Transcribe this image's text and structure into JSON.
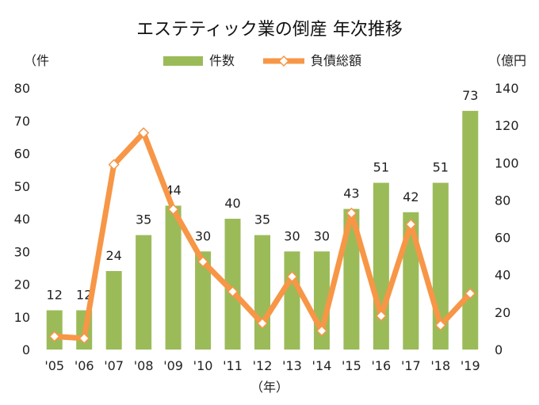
{
  "chart_data": {
    "type": "bar+line",
    "title": "エステティック業の倒産 年次推移",
    "left_axis_unit": "（件",
    "right_axis_unit": "（億円",
    "x_axis_unit": "（年）",
    "categories": [
      "'05",
      "'06",
      "'07",
      "'08",
      "'09",
      "'10",
      "'11",
      "'12",
      "'13",
      "'14",
      "'15",
      "'16",
      "'17",
      "'18",
      "'19"
    ],
    "y_left": {
      "min": 0,
      "max": 80,
      "ticks": [
        0,
        10,
        20,
        30,
        40,
        50,
        60,
        70,
        80
      ]
    },
    "y_right": {
      "min": 0,
      "max": 140,
      "ticks": [
        0,
        20,
        40,
        60,
        80,
        100,
        120,
        140
      ]
    },
    "series": [
      {
        "name": "件数",
        "type": "bar",
        "axis": "left",
        "color": "#9bbb59",
        "values": [
          12,
          12,
          24,
          35,
          44,
          30,
          40,
          35,
          30,
          30,
          43,
          51,
          42,
          51,
          73
        ]
      },
      {
        "name": "負債総額",
        "type": "line",
        "axis": "right",
        "color": "#f79646",
        "values": [
          7,
          6,
          99,
          116,
          75,
          47,
          31,
          14,
          39,
          10,
          73,
          18,
          67,
          13,
          30
        ]
      }
    ],
    "legend": [
      {
        "name": "件数",
        "marker": "bar"
      },
      {
        "name": "負債総額",
        "marker": "line-diamond"
      }
    ],
    "grid": false
  }
}
